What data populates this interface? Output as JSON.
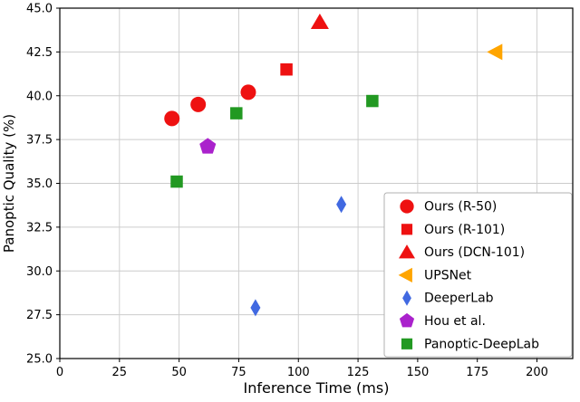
{
  "chart_data": {
    "type": "scatter",
    "title": "",
    "xlabel": "Inference Time (ms)",
    "ylabel": "Panoptic Quality (%)",
    "xlim": [
      0,
      215
    ],
    "ylim": [
      25.0,
      45.0
    ],
    "xticks": [
      0,
      25,
      50,
      75,
      100,
      125,
      150,
      175,
      200
    ],
    "yticks": [
      25.0,
      27.5,
      30.0,
      32.5,
      35.0,
      37.5,
      40.0,
      42.5,
      45.0
    ],
    "grid": true,
    "grid_color": "#cccccc",
    "legend_position": "lower right",
    "series": [
      {
        "name": "Ours (R-50)",
        "marker": "circle",
        "color": "#ee1111",
        "points": [
          [
            47,
            38.7
          ],
          [
            58,
            39.5
          ],
          [
            79,
            40.2
          ]
        ]
      },
      {
        "name": "Ours (R-101)",
        "marker": "square",
        "color": "#ee1111",
        "points": [
          [
            95,
            41.5
          ]
        ]
      },
      {
        "name": "Ours (DCN-101)",
        "marker": "triangle-up",
        "color": "#ee1111",
        "points": [
          [
            109,
            44.2
          ]
        ]
      },
      {
        "name": "UPSNet",
        "marker": "triangle-left",
        "color": "#ffa500",
        "points": [
          [
            183,
            42.5
          ]
        ]
      },
      {
        "name": "DeeperLab",
        "marker": "thin-diamond",
        "color": "#4169e1",
        "points": [
          [
            82,
            27.9
          ],
          [
            118,
            33.8
          ]
        ]
      },
      {
        "name": "Hou et al.",
        "marker": "pentagon",
        "color": "#aa22cc",
        "points": [
          [
            62,
            37.1
          ]
        ]
      },
      {
        "name": "Panoptic-DeepLab",
        "marker": "square",
        "color": "#229922",
        "points": [
          [
            49,
            35.1
          ],
          [
            74,
            39.0
          ],
          [
            131,
            39.7
          ]
        ]
      }
    ]
  }
}
